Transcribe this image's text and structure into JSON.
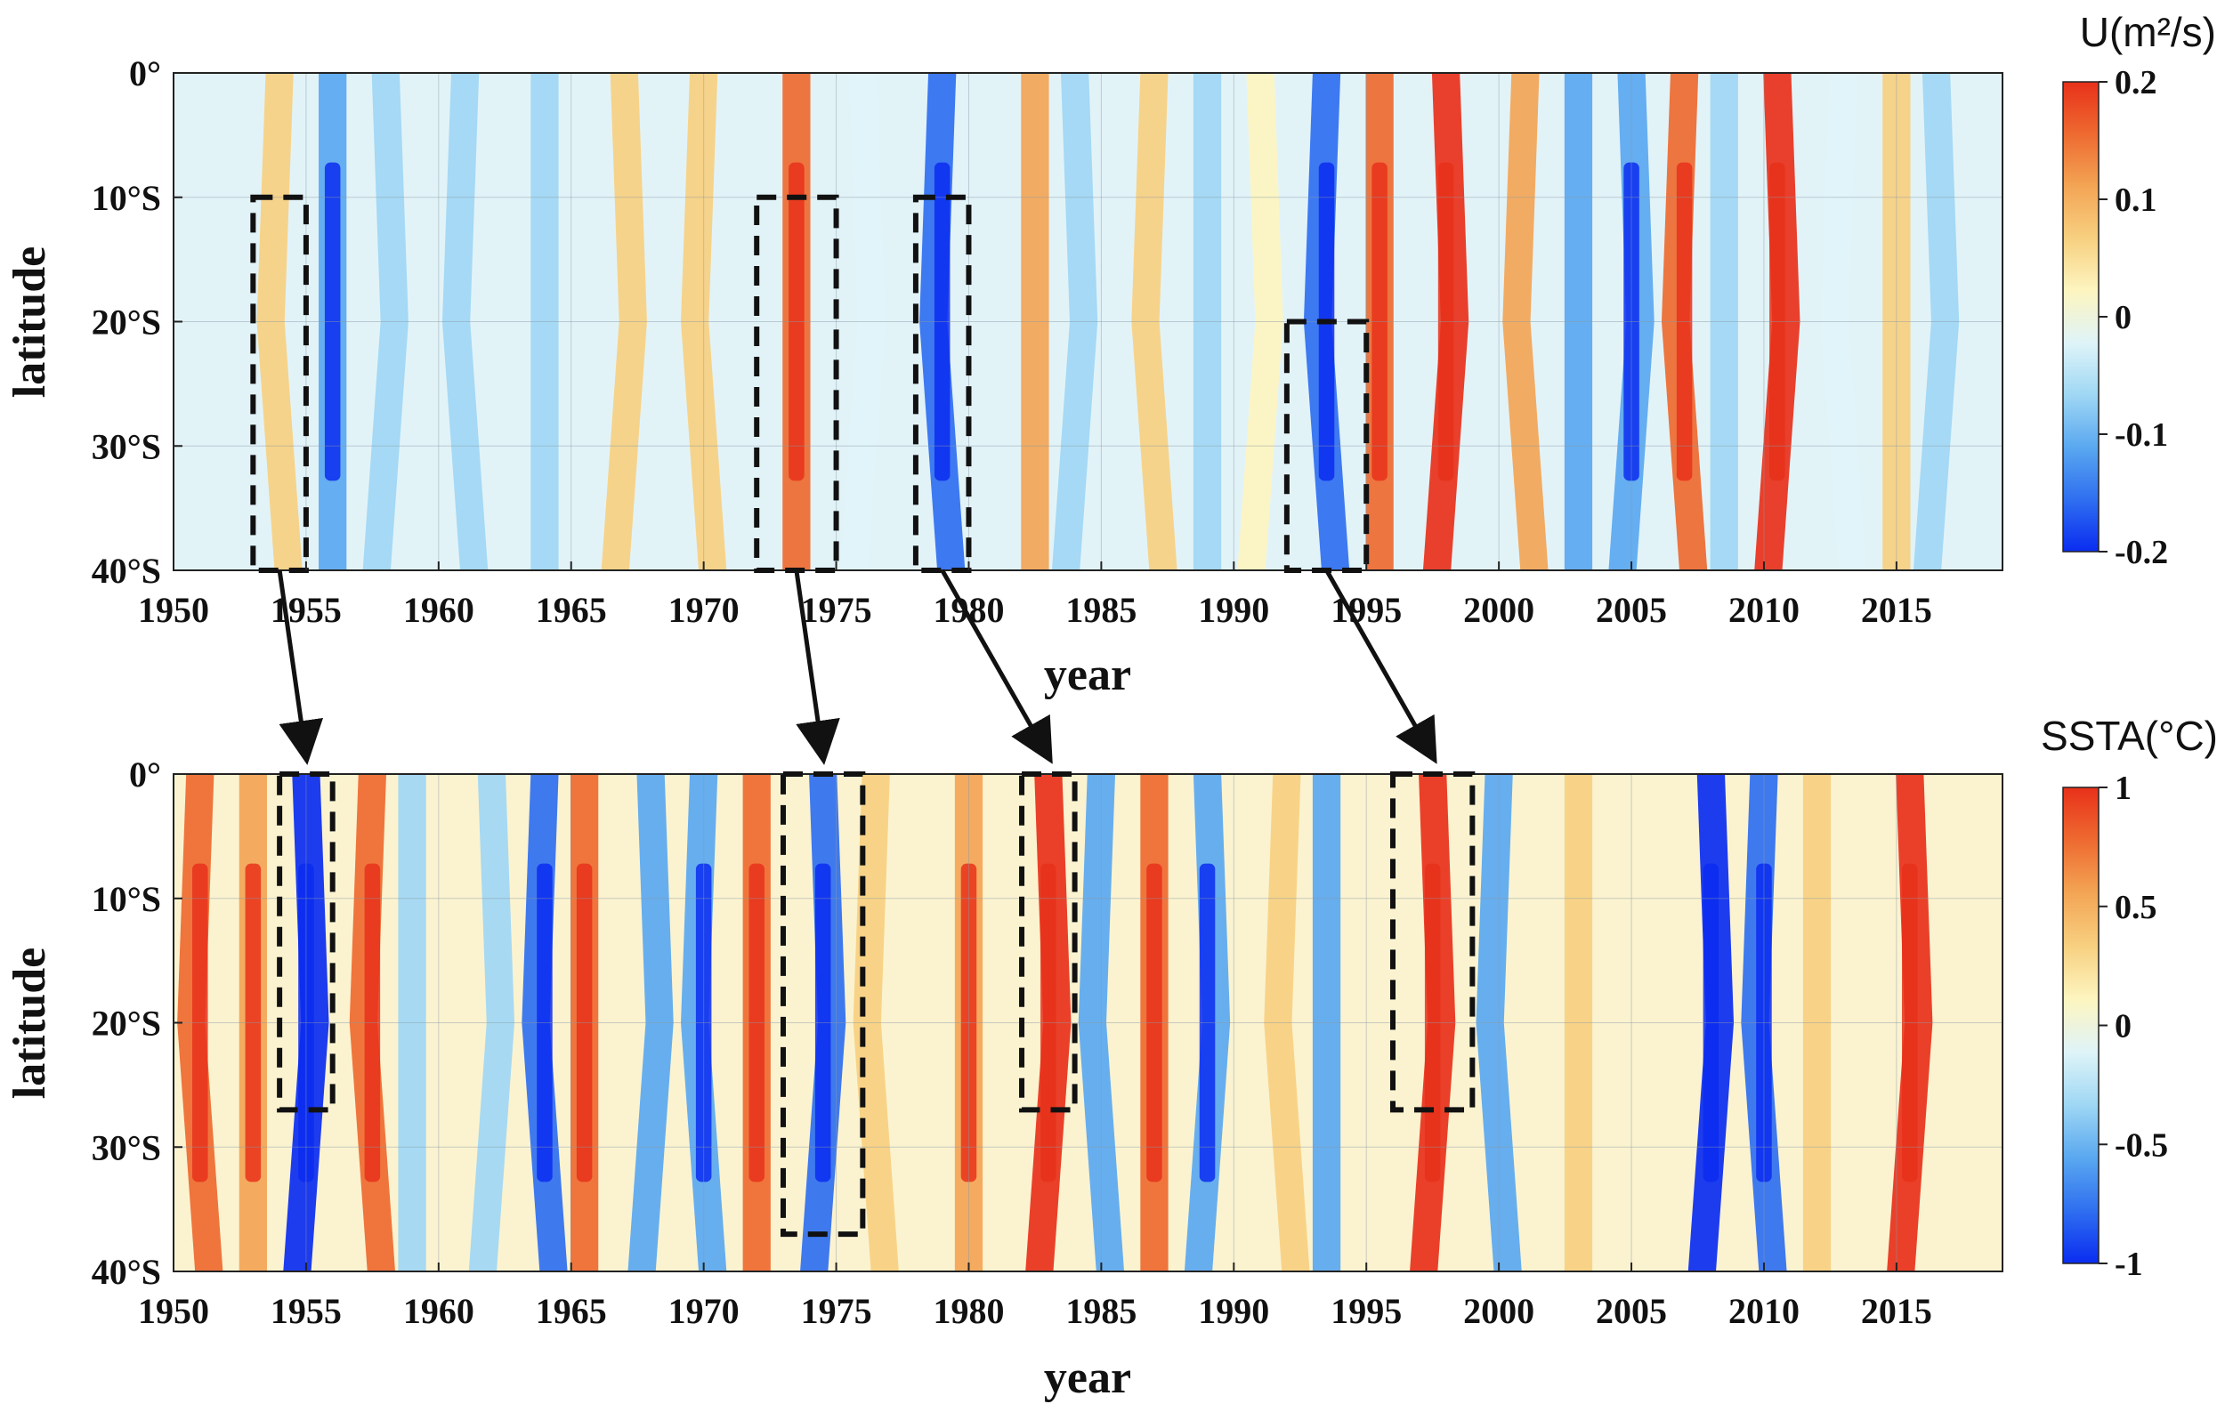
{
  "chart_data": [
    {
      "type": "heatmap",
      "id": "top",
      "variable": "U",
      "xlabel": "year",
      "ylabel": "latitude",
      "xlim": [
        1950,
        2019
      ],
      "ylim": [
        -40,
        0
      ],
      "x_ticks": [
        "1950",
        "1955",
        "1960",
        "1965",
        "1970",
        "1975",
        "1980",
        "1985",
        "1990",
        "1995",
        "2000",
        "2005",
        "2010",
        "2015"
      ],
      "y_ticks": [
        "0°",
        "10°S",
        "20°S",
        "30°S",
        "40°S"
      ],
      "colorbar": {
        "title": "U(m²/s)",
        "min": -0.2,
        "max": 0.2,
        "ticks": [
          "0.2",
          "0.1",
          "0",
          "-0.1",
          "-0.2"
        ]
      },
      "anomaly_events": [
        {
          "year": 1954,
          "value": 0.08
        },
        {
          "year": 1956,
          "value": -0.12
        },
        {
          "year": 1958,
          "value": -0.06
        },
        {
          "year": 1961,
          "value": -0.05
        },
        {
          "year": 1964,
          "value": -0.07
        },
        {
          "year": 1967,
          "value": 0.05
        },
        {
          "year": 1970,
          "value": 0.07
        },
        {
          "year": 1973.5,
          "value": 0.16
        },
        {
          "year": 1976,
          "value": -0.04
        },
        {
          "year": 1979,
          "value": -0.16
        },
        {
          "year": 1982.5,
          "value": 0.1
        },
        {
          "year": 1984,
          "value": -0.06
        },
        {
          "year": 1987,
          "value": 0.05
        },
        {
          "year": 1989,
          "value": -0.05
        },
        {
          "year": 1991,
          "value": 0.04
        },
        {
          "year": 1993.5,
          "value": -0.17
        },
        {
          "year": 1995.5,
          "value": 0.14
        },
        {
          "year": 1998,
          "value": 0.2
        },
        {
          "year": 2001,
          "value": 0.1
        },
        {
          "year": 2003,
          "value": -0.1
        },
        {
          "year": 2005,
          "value": -0.12
        },
        {
          "year": 2007,
          "value": 0.14
        },
        {
          "year": 2008.5,
          "value": -0.06
        },
        {
          "year": 2010.5,
          "value": 0.18
        },
        {
          "year": 2013,
          "value": -0.04
        },
        {
          "year": 2015,
          "value": 0.05
        },
        {
          "year": 2016.5,
          "value": -0.08
        }
      ],
      "boxes": [
        {
          "x0": 1953,
          "x1": 1955,
          "lat_top": -10,
          "lat_bottom": -40
        },
        {
          "x0": 1972,
          "x1": 1975,
          "lat_top": -10,
          "lat_bottom": -40
        },
        {
          "x0": 1978,
          "x1": 1980,
          "lat_top": -10,
          "lat_bottom": -40
        },
        {
          "x0": 1992,
          "x1": 1995,
          "lat_top": -20,
          "lat_bottom": -40
        }
      ]
    },
    {
      "type": "heatmap",
      "id": "bottom",
      "variable": "SSTA",
      "xlabel": "year",
      "ylabel": "latitude",
      "xlim": [
        1950,
        2019
      ],
      "ylim": [
        -40,
        0
      ],
      "x_ticks": [
        "1950",
        "1955",
        "1960",
        "1965",
        "1970",
        "1975",
        "1980",
        "1985",
        "1990",
        "1995",
        "2000",
        "2005",
        "2010",
        "2015"
      ],
      "y_ticks": [
        "0°",
        "10°S",
        "20°S",
        "30°S",
        "40°S"
      ],
      "colorbar": {
        "title": "SSTA(°C)",
        "min": -1,
        "max": 1,
        "ticks": [
          "1",
          "0.5",
          "0",
          "-0.5",
          "-1"
        ]
      },
      "anomaly_events": [
        {
          "year": 1951,
          "value": 0.7
        },
        {
          "year": 1953,
          "value": 0.6
        },
        {
          "year": 1955,
          "value": -0.9
        },
        {
          "year": 1957.5,
          "value": 0.7
        },
        {
          "year": 1959,
          "value": -0.4
        },
        {
          "year": 1962,
          "value": -0.3
        },
        {
          "year": 1964,
          "value": -0.8
        },
        {
          "year": 1965.5,
          "value": 0.8
        },
        {
          "year": 1968,
          "value": -0.5
        },
        {
          "year": 1970,
          "value": -0.6
        },
        {
          "year": 1972,
          "value": 0.7
        },
        {
          "year": 1974.5,
          "value": -0.8
        },
        {
          "year": 1976.5,
          "value": 0.3
        },
        {
          "year": 1980,
          "value": 0.6
        },
        {
          "year": 1983,
          "value": 1.0
        },
        {
          "year": 1985,
          "value": -0.5
        },
        {
          "year": 1987,
          "value": 0.8
        },
        {
          "year": 1989,
          "value": -0.6
        },
        {
          "year": 1992,
          "value": 0.3
        },
        {
          "year": 1993.5,
          "value": -0.5
        },
        {
          "year": 1997.5,
          "value": 1.0
        },
        {
          "year": 2000,
          "value": -0.5
        },
        {
          "year": 2003,
          "value": 0.3
        },
        {
          "year": 2008,
          "value": -0.9
        },
        {
          "year": 2010,
          "value": -0.8
        },
        {
          "year": 2012,
          "value": 0.3
        },
        {
          "year": 2015.5,
          "value": 0.9
        }
      ],
      "boxes": [
        {
          "x0": 1954,
          "x1": 1956,
          "lat_top": 0,
          "lat_bottom": -27
        },
        {
          "x0": 1973,
          "x1": 1976,
          "lat_top": 0,
          "lat_bottom": -37
        },
        {
          "x0": 1982,
          "x1": 1984,
          "lat_top": 0,
          "lat_bottom": -27
        },
        {
          "x0": 1996,
          "x1": 1999,
          "lat_top": 0,
          "lat_bottom": -27
        }
      ]
    }
  ],
  "arrows": [
    {
      "from_year": 1954,
      "to_year": 1955
    },
    {
      "from_year": 1973.5,
      "to_year": 1974.5
    },
    {
      "from_year": 1979,
      "to_year": 1983
    },
    {
      "from_year": 1993.5,
      "to_year": 1997.5
    }
  ],
  "colors": {
    "scale": [
      "#0a2cf0",
      "#2f6ff0",
      "#5aa8f0",
      "#9fd7f4",
      "#dff4f8",
      "#fdf5c0",
      "#f7d080",
      "#f3a555",
      "#ee6a30",
      "#e8311a"
    ],
    "box_stroke": "#111111",
    "arrow": "#111111"
  }
}
